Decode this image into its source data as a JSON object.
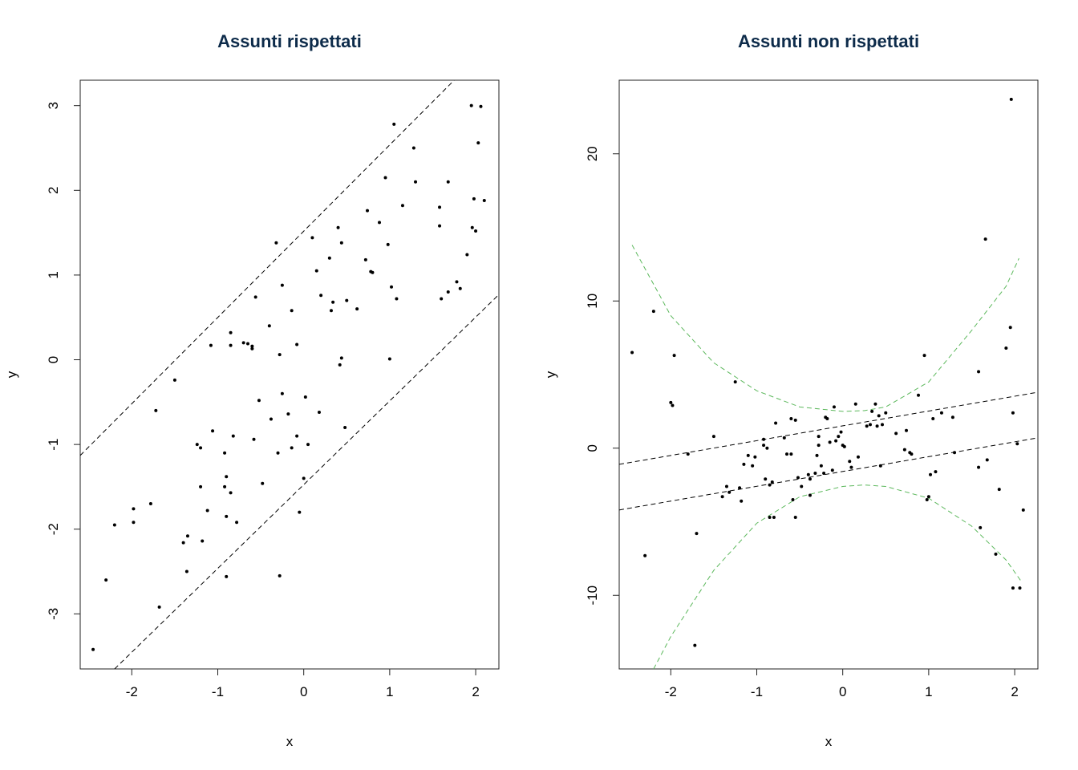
{
  "chart_data": [
    {
      "type": "scatter",
      "title": "Assunti rispettati",
      "xlabel": "x",
      "ylabel": "y",
      "xlim": [
        -2.6,
        2.27
      ],
      "ylim": [
        -3.65,
        3.3
      ],
      "xticks": [
        -2,
        -1,
        0,
        1,
        2
      ],
      "yticks": [
        -3,
        -2,
        -1,
        0,
        1,
        2,
        3
      ],
      "grid": false,
      "point_color": "#000000",
      "lines": [
        {
          "style": "dashed",
          "color": "#000000",
          "x": [
            -2.6,
            1.75
          ],
          "y": [
            -1.13,
            3.3
          ]
        },
        {
          "style": "dashed",
          "color": "#000000",
          "x": [
            -2.2,
            2.27
          ],
          "y": [
            -3.65,
            0.77
          ]
        }
      ],
      "points": [
        [
          -2.45,
          -3.42
        ],
        [
          -2.3,
          -2.6
        ],
        [
          -2.2,
          -1.95
        ],
        [
          -1.98,
          -1.76
        ],
        [
          -1.98,
          -1.92
        ],
        [
          -1.78,
          -1.7
        ],
        [
          -1.72,
          -0.6
        ],
        [
          -1.68,
          -2.92
        ],
        [
          -1.5,
          -0.24
        ],
        [
          -1.4,
          -2.16
        ],
        [
          -1.35,
          -2.08
        ],
        [
          -1.36,
          -2.5
        ],
        [
          -1.24,
          -1.0
        ],
        [
          -1.2,
          -1.04
        ],
        [
          -1.2,
          -1.5
        ],
        [
          -1.18,
          -2.14
        ],
        [
          -1.12,
          -1.78
        ],
        [
          -1.08,
          0.17
        ],
        [
          -1.06,
          -0.84
        ],
        [
          -0.92,
          -1.1
        ],
        [
          -0.92,
          -1.5
        ],
        [
          -0.9,
          -1.38
        ],
        [
          -0.9,
          -1.85
        ],
        [
          -0.9,
          -2.56
        ],
        [
          -0.85,
          0.32
        ],
        [
          -0.85,
          0.17
        ],
        [
          -0.85,
          -1.57
        ],
        [
          -0.82,
          -0.9
        ],
        [
          -0.78,
          -1.92
        ],
        [
          -0.7,
          0.2
        ],
        [
          -0.65,
          0.19
        ],
        [
          -0.6,
          0.13
        ],
        [
          -0.6,
          0.16
        ],
        [
          -0.58,
          -0.94
        ],
        [
          -0.56,
          0.74
        ],
        [
          -0.52,
          -0.48
        ],
        [
          -0.48,
          -1.46
        ],
        [
          -0.4,
          0.4
        ],
        [
          -0.38,
          -0.7
        ],
        [
          -0.32,
          1.38
        ],
        [
          -0.3,
          -1.1
        ],
        [
          -0.28,
          0.06
        ],
        [
          -0.28,
          -2.55
        ],
        [
          -0.25,
          0.88
        ],
        [
          -0.25,
          -0.4
        ],
        [
          -0.18,
          -0.64
        ],
        [
          -0.14,
          0.58
        ],
        [
          -0.14,
          -1.04
        ],
        [
          -0.08,
          0.18
        ],
        [
          -0.08,
          -0.9
        ],
        [
          -0.05,
          -1.8
        ],
        [
          0.0,
          -1.4
        ],
        [
          0.02,
          -0.44
        ],
        [
          0.05,
          -1.0
        ],
        [
          0.1,
          1.44
        ],
        [
          0.15,
          1.05
        ],
        [
          0.18,
          -0.62
        ],
        [
          0.2,
          0.76
        ],
        [
          0.3,
          1.2
        ],
        [
          0.32,
          0.58
        ],
        [
          0.34,
          0.68
        ],
        [
          0.4,
          1.56
        ],
        [
          0.42,
          -0.06
        ],
        [
          0.44,
          1.38
        ],
        [
          0.44,
          0.02
        ],
        [
          0.48,
          -0.8
        ],
        [
          0.5,
          0.7
        ],
        [
          0.62,
          0.6
        ],
        [
          0.72,
          1.18
        ],
        [
          0.74,
          1.76
        ],
        [
          0.78,
          1.04
        ],
        [
          0.8,
          1.03
        ],
        [
          0.88,
          1.62
        ],
        [
          0.95,
          2.15
        ],
        [
          0.98,
          1.36
        ],
        [
          1.0,
          0.01
        ],
        [
          1.02,
          0.86
        ],
        [
          1.05,
          2.78
        ],
        [
          1.08,
          0.72
        ],
        [
          1.15,
          1.82
        ],
        [
          1.28,
          2.5
        ],
        [
          1.3,
          2.1
        ],
        [
          1.58,
          1.8
        ],
        [
          1.58,
          1.58
        ],
        [
          1.6,
          0.72
        ],
        [
          1.68,
          0.8
        ],
        [
          1.68,
          2.1
        ],
        [
          1.78,
          0.92
        ],
        [
          1.82,
          0.84
        ],
        [
          1.9,
          1.24
        ],
        [
          1.95,
          3.0
        ],
        [
          1.96,
          1.56
        ],
        [
          1.98,
          1.9
        ],
        [
          2.0,
          1.52
        ],
        [
          2.03,
          2.56
        ],
        [
          2.06,
          2.99
        ],
        [
          2.1,
          1.88
        ]
      ]
    },
    {
      "type": "scatter",
      "title": "Assunti non rispettati",
      "xlabel": "x",
      "ylabel": "y",
      "xlim": [
        -2.6,
        2.27
      ],
      "ylim": [
        -15,
        25
      ],
      "xticks": [
        -2,
        -1,
        0,
        1,
        2
      ],
      "yticks": [
        -10,
        0,
        10,
        20
      ],
      "grid": false,
      "point_color": "#000000",
      "lines": [
        {
          "style": "dashed",
          "color": "#000000",
          "x": [
            -2.6,
            2.27
          ],
          "y": [
            -1.1,
            3.8
          ]
        },
        {
          "style": "dashed",
          "color": "#000000",
          "x": [
            -2.6,
            2.27
          ],
          "y": [
            -4.2,
            0.7
          ]
        }
      ],
      "band": {
        "style": "dashed",
        "color": "#5cb85c",
        "upper": {
          "x": [
            -2.45,
            -2.0,
            -1.5,
            -1.0,
            -0.5,
            0.0,
            0.25,
            0.5,
            1.0,
            1.5,
            1.9,
            2.05
          ],
          "y": [
            13.8,
            9.0,
            5.8,
            3.9,
            2.8,
            2.5,
            2.55,
            2.8,
            4.5,
            8.0,
            11.0,
            12.9
          ]
        },
        "lower": {
          "x": [
            -2.2,
            -2.0,
            -1.5,
            -1.0,
            -0.5,
            0.0,
            0.25,
            0.5,
            1.0,
            1.5,
            1.9,
            2.07
          ],
          "y": [
            -15.0,
            -12.8,
            -8.3,
            -5.1,
            -3.3,
            -2.6,
            -2.5,
            -2.6,
            -3.4,
            -5.3,
            -7.6,
            -9.0
          ]
        }
      },
      "points": [
        [
          -2.45,
          6.5
        ],
        [
          -2.3,
          -7.3
        ],
        [
          -2.2,
          9.3
        ],
        [
          -2.0,
          3.1
        ],
        [
          -1.98,
          2.9
        ],
        [
          -1.96,
          6.3
        ],
        [
          -1.8,
          -0.4
        ],
        [
          -1.72,
          -13.4
        ],
        [
          -1.7,
          -5.8
        ],
        [
          -1.5,
          0.8
        ],
        [
          -1.4,
          -3.3
        ],
        [
          -1.35,
          -2.6
        ],
        [
          -1.32,
          -3.0
        ],
        [
          -1.25,
          4.5
        ],
        [
          -1.2,
          -2.7
        ],
        [
          -1.18,
          -3.6
        ],
        [
          -1.15,
          -1.1
        ],
        [
          -1.1,
          -0.5
        ],
        [
          -1.05,
          -1.2
        ],
        [
          -1.02,
          -0.6
        ],
        [
          -0.92,
          0.6
        ],
        [
          -0.92,
          0.2
        ],
        [
          -0.9,
          -2.1
        ],
        [
          -0.88,
          0.0
        ],
        [
          -0.85,
          -2.5
        ],
        [
          -0.85,
          -4.7
        ],
        [
          -0.82,
          -2.3
        ],
        [
          -0.8,
          -4.7
        ],
        [
          -0.78,
          1.7
        ],
        [
          -0.68,
          0.7
        ],
        [
          -0.65,
          -0.4
        ],
        [
          -0.6,
          -0.4
        ],
        [
          -0.6,
          2.0
        ],
        [
          -0.58,
          -3.5
        ],
        [
          -0.55,
          1.9
        ],
        [
          -0.55,
          -4.7
        ],
        [
          -0.52,
          -2.0
        ],
        [
          -0.48,
          -2.6
        ],
        [
          -0.4,
          -1.8
        ],
        [
          -0.38,
          -2.1
        ],
        [
          -0.38,
          -3.2
        ],
        [
          -0.32,
          -1.7
        ],
        [
          -0.3,
          -0.5
        ],
        [
          -0.28,
          0.8
        ],
        [
          -0.28,
          0.2
        ],
        [
          -0.25,
          -1.2
        ],
        [
          -0.22,
          -1.7
        ],
        [
          -0.2,
          2.1
        ],
        [
          -0.18,
          2.0
        ],
        [
          -0.15,
          0.4
        ],
        [
          -0.12,
          -1.5
        ],
        [
          -0.1,
          2.8
        ],
        [
          -0.08,
          0.5
        ],
        [
          -0.05,
          0.8
        ],
        [
          -0.02,
          1.1
        ],
        [
          0.0,
          0.2
        ],
        [
          0.02,
          0.1
        ],
        [
          0.08,
          -0.9
        ],
        [
          0.1,
          -1.3
        ],
        [
          0.15,
          3.0
        ],
        [
          0.18,
          -0.6
        ],
        [
          0.28,
          1.5
        ],
        [
          0.32,
          1.6
        ],
        [
          0.34,
          2.5
        ],
        [
          0.38,
          3.0
        ],
        [
          0.4,
          1.5
        ],
        [
          0.42,
          2.2
        ],
        [
          0.44,
          -1.2
        ],
        [
          0.46,
          1.6
        ],
        [
          0.5,
          2.4
        ],
        [
          0.62,
          1.0
        ],
        [
          0.72,
          -0.1
        ],
        [
          0.74,
          1.2
        ],
        [
          0.78,
          -0.3
        ],
        [
          0.8,
          -0.4
        ],
        [
          0.88,
          3.6
        ],
        [
          0.95,
          6.3
        ],
        [
          0.98,
          -3.5
        ],
        [
          1.0,
          -3.3
        ],
        [
          1.02,
          -1.8
        ],
        [
          1.05,
          2.0
        ],
        [
          1.08,
          -1.6
        ],
        [
          1.15,
          2.4
        ],
        [
          1.28,
          2.1
        ],
        [
          1.3,
          -0.3
        ],
        [
          1.58,
          5.2
        ],
        [
          1.58,
          -1.3
        ],
        [
          1.6,
          -5.4
        ],
        [
          1.66,
          14.2
        ],
        [
          1.68,
          -0.8
        ],
        [
          1.78,
          -7.2
        ],
        [
          1.82,
          -2.8
        ],
        [
          1.9,
          6.8
        ],
        [
          1.95,
          8.2
        ],
        [
          1.96,
          23.7
        ],
        [
          1.98,
          2.4
        ],
        [
          1.98,
          -9.5
        ],
        [
          2.03,
          0.3
        ],
        [
          2.06,
          -9.5
        ],
        [
          2.1,
          -4.2
        ]
      ]
    }
  ]
}
